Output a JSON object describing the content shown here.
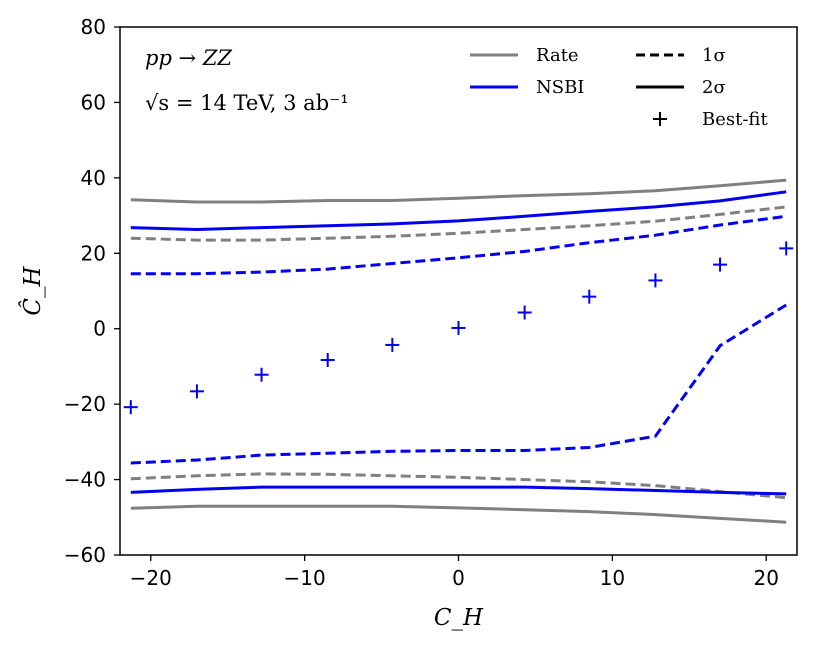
{
  "chart_data": {
    "type": "line",
    "title": "",
    "xlabel": "C_H",
    "ylabel": "Ĉ_H",
    "xlim": [
      -22,
      22
    ],
    "ylim": [
      -60,
      80
    ],
    "xticks": [
      -20,
      -10,
      0,
      10,
      20
    ],
    "yticks": [
      -60,
      -40,
      -20,
      0,
      20,
      40,
      60,
      80
    ],
    "xtick_labels": [
      "−20",
      "−10",
      "0",
      "10",
      "20"
    ],
    "ytick_labels": [
      "−60",
      "−40",
      "−20",
      "0",
      "20",
      "40",
      "60",
      "80"
    ],
    "grid": false,
    "annotations": {
      "process": "pp → ZZ",
      "energy_lumi": "√s = 14 TeV,  3 ab⁻¹"
    },
    "legend": {
      "position": "top-right",
      "entries": [
        {
          "label": "Rate",
          "kind": "color",
          "color": "#808080"
        },
        {
          "label": "NSBI",
          "kind": "color",
          "color": "#0000ee"
        },
        {
          "label": "1σ",
          "kind": "linestyle",
          "style": "dashed"
        },
        {
          "label": "2σ",
          "kind": "linestyle",
          "style": "solid"
        },
        {
          "label": "Best-fit",
          "kind": "marker",
          "marker": "+"
        }
      ]
    },
    "x": [
      -21.3,
      -17.0,
      -12.8,
      -8.5,
      -4.3,
      0,
      4.3,
      8.5,
      12.8,
      17.0,
      21.3
    ],
    "series": [
      {
        "name": "Rate 2σ upper",
        "color": "#808080",
        "style": "solid",
        "values": [
          34.2,
          33.6,
          33.6,
          34.0,
          34.0,
          34.6,
          35.3,
          35.8,
          36.6,
          37.9,
          39.4
        ]
      },
      {
        "name": "Rate 1σ upper",
        "color": "#808080",
        "style": "dashed",
        "values": [
          24.0,
          23.5,
          23.5,
          24.0,
          24.5,
          25.3,
          26.3,
          27.3,
          28.5,
          30.3,
          32.3
        ]
      },
      {
        "name": "Rate 1σ lower",
        "color": "#808080",
        "style": "dashed",
        "values": [
          -39.8,
          -39.0,
          -38.5,
          -38.6,
          -39.0,
          -39.4,
          -40.0,
          -40.6,
          -41.6,
          -43.2,
          -44.8
        ]
      },
      {
        "name": "Rate 2σ lower",
        "color": "#808080",
        "style": "solid",
        "values": [
          -47.6,
          -47.1,
          -47.1,
          -47.1,
          -47.1,
          -47.5,
          -48.0,
          -48.5,
          -49.3,
          -50.3,
          -51.3
        ]
      },
      {
        "name": "NSBI 2σ upper",
        "color": "#0000ee",
        "style": "solid",
        "values": [
          26.8,
          26.3,
          26.8,
          27.3,
          27.8,
          28.6,
          29.8,
          31.1,
          32.3,
          33.9,
          36.3
        ]
      },
      {
        "name": "NSBI 1σ upper",
        "color": "#0000ee",
        "style": "dashed",
        "values": [
          14.6,
          14.6,
          15.0,
          15.8,
          17.3,
          18.8,
          20.5,
          22.8,
          24.8,
          27.5,
          29.8
        ]
      },
      {
        "name": "NSBI 1σ lower",
        "color": "#0000ee",
        "style": "dashed",
        "values": [
          -35.6,
          -34.8,
          -33.5,
          -33.0,
          -32.5,
          -32.3,
          -32.3,
          -31.5,
          -28.5,
          -4.5,
          6.3
        ]
      },
      {
        "name": "NSBI 2σ lower",
        "color": "#0000ee",
        "style": "solid",
        "values": [
          -43.4,
          -42.6,
          -42.0,
          -42.0,
          -42.0,
          -42.0,
          -42.0,
          -42.4,
          -42.9,
          -43.4,
          -43.8
        ]
      }
    ],
    "best_fit": {
      "name": "Best-fit",
      "color": "#0000ee",
      "marker": "+",
      "values": [
        -20.8,
        -16.6,
        -12.2,
        -8.3,
        -4.3,
        0.2,
        4.3,
        8.5,
        12.8,
        17.0,
        21.3
      ]
    }
  }
}
